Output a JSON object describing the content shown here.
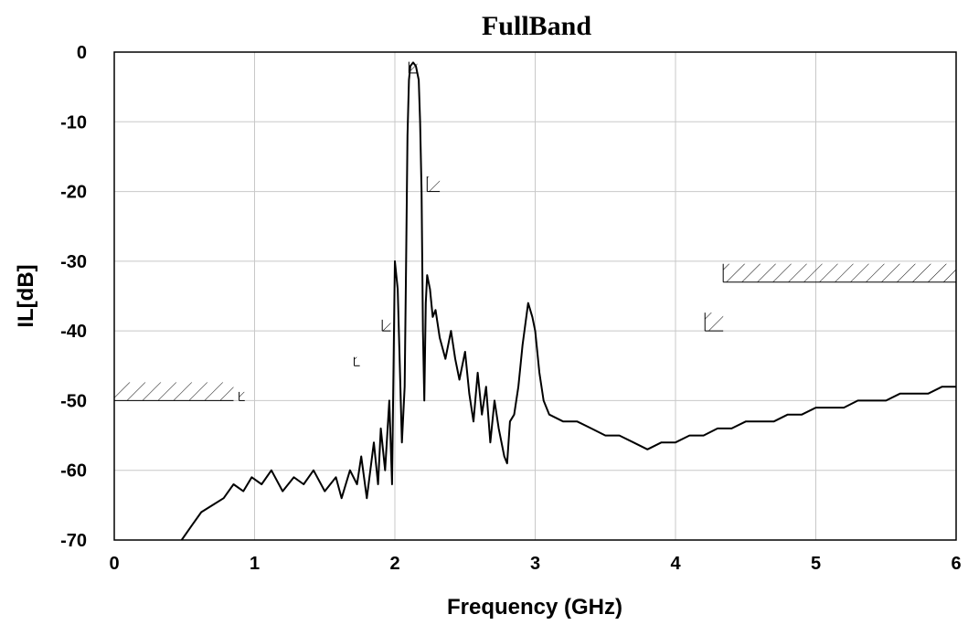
{
  "chart_data": {
    "type": "line",
    "title": "FullBand",
    "xlabel": "Frequency (GHz)",
    "ylabel": "IL[dB]",
    "xlim": [
      0,
      6
    ],
    "ylim": [
      -70,
      0
    ],
    "x_ticks": [
      "0",
      "1",
      "2",
      "3",
      "4",
      "5",
      "6"
    ],
    "y_ticks": [
      "0",
      "-10",
      "-20",
      "-30",
      "-40",
      "-50",
      "-60",
      "-70"
    ],
    "grid": true,
    "line_color": "#000000",
    "series": [
      {
        "x": [
          0.48,
          0.55,
          0.62,
          0.7,
          0.78,
          0.85,
          0.92,
          0.98,
          1.05,
          1.12,
          1.2,
          1.28,
          1.35,
          1.42,
          1.5,
          1.58,
          1.62,
          1.68,
          1.73,
          1.76,
          1.8,
          1.85,
          1.88,
          1.9,
          1.93,
          1.96,
          1.98,
          2.0,
          2.02,
          2.05,
          2.07,
          2.08,
          2.09,
          2.1,
          2.11,
          2.13,
          2.15,
          2.17,
          2.18,
          2.19,
          2.2,
          2.21,
          2.22,
          2.23,
          2.25,
          2.27,
          2.29,
          2.32,
          2.36,
          2.4,
          2.43,
          2.46,
          2.5,
          2.53,
          2.56,
          2.59,
          2.62,
          2.65,
          2.68,
          2.71,
          2.74,
          2.78,
          2.8,
          2.82,
          2.85,
          2.88,
          2.91,
          2.95,
          2.98,
          3.0,
          3.03,
          3.06,
          3.1,
          3.2,
          3.3,
          3.4,
          3.5,
          3.6,
          3.7,
          3.8,
          3.9,
          4.0,
          4.1,
          4.2,
          4.3,
          4.4,
          4.5,
          4.6,
          4.7,
          4.8,
          4.9,
          5.0,
          5.1,
          5.2,
          5.3,
          5.4,
          5.5,
          5.6,
          5.7,
          5.8,
          5.9,
          6.0
        ],
        "y": [
          -70,
          -68,
          -66,
          -65,
          -64,
          -62,
          -63,
          -61,
          -62,
          -60,
          -63,
          -61,
          -62,
          -60,
          -63,
          -61,
          -64,
          -60,
          -62,
          -58,
          -64,
          -56,
          -62,
          -54,
          -60,
          -50,
          -62,
          -30,
          -34,
          -56,
          -48,
          -30,
          -12,
          -4,
          -2,
          -1.5,
          -2,
          -4,
          -10,
          -20,
          -40,
          -50,
          -36,
          -32,
          -34,
          -38,
          -37,
          -41,
          -44,
          -40,
          -44,
          -47,
          -43,
          -49,
          -53,
          -46,
          -52,
          -48,
          -56,
          -50,
          -54,
          -58,
          -59,
          -53,
          -52,
          -48,
          -42,
          -36,
          -38,
          -40,
          -46,
          -50,
          -52,
          -53,
          -53,
          -54,
          -55,
          -55,
          -56,
          -57,
          -56,
          -56,
          -55,
          -55,
          -54,
          -54,
          -53,
          -53,
          -53,
          -52,
          -52,
          -51,
          -51,
          -51,
          -50,
          -50,
          -50,
          -49,
          -49,
          -49,
          -48,
          -48
        ]
      }
    ],
    "hatched_limits": [
      {
        "x0": 0.0,
        "x1": 0.85,
        "y": -50
      },
      {
        "x0": 0.89,
        "x1": 0.93,
        "y": -50
      },
      {
        "x0": 1.71,
        "x1": 1.75,
        "y": -45
      },
      {
        "x0": 1.91,
        "x1": 1.97,
        "y": -40
      },
      {
        "x0": 2.1,
        "x1": 2.16,
        "y": -3
      },
      {
        "x0": 2.23,
        "x1": 2.32,
        "y": -20
      },
      {
        "x0": 4.21,
        "x1": 4.34,
        "y": -40
      },
      {
        "x0": 4.34,
        "x1": 6.0,
        "y": -33
      }
    ]
  }
}
